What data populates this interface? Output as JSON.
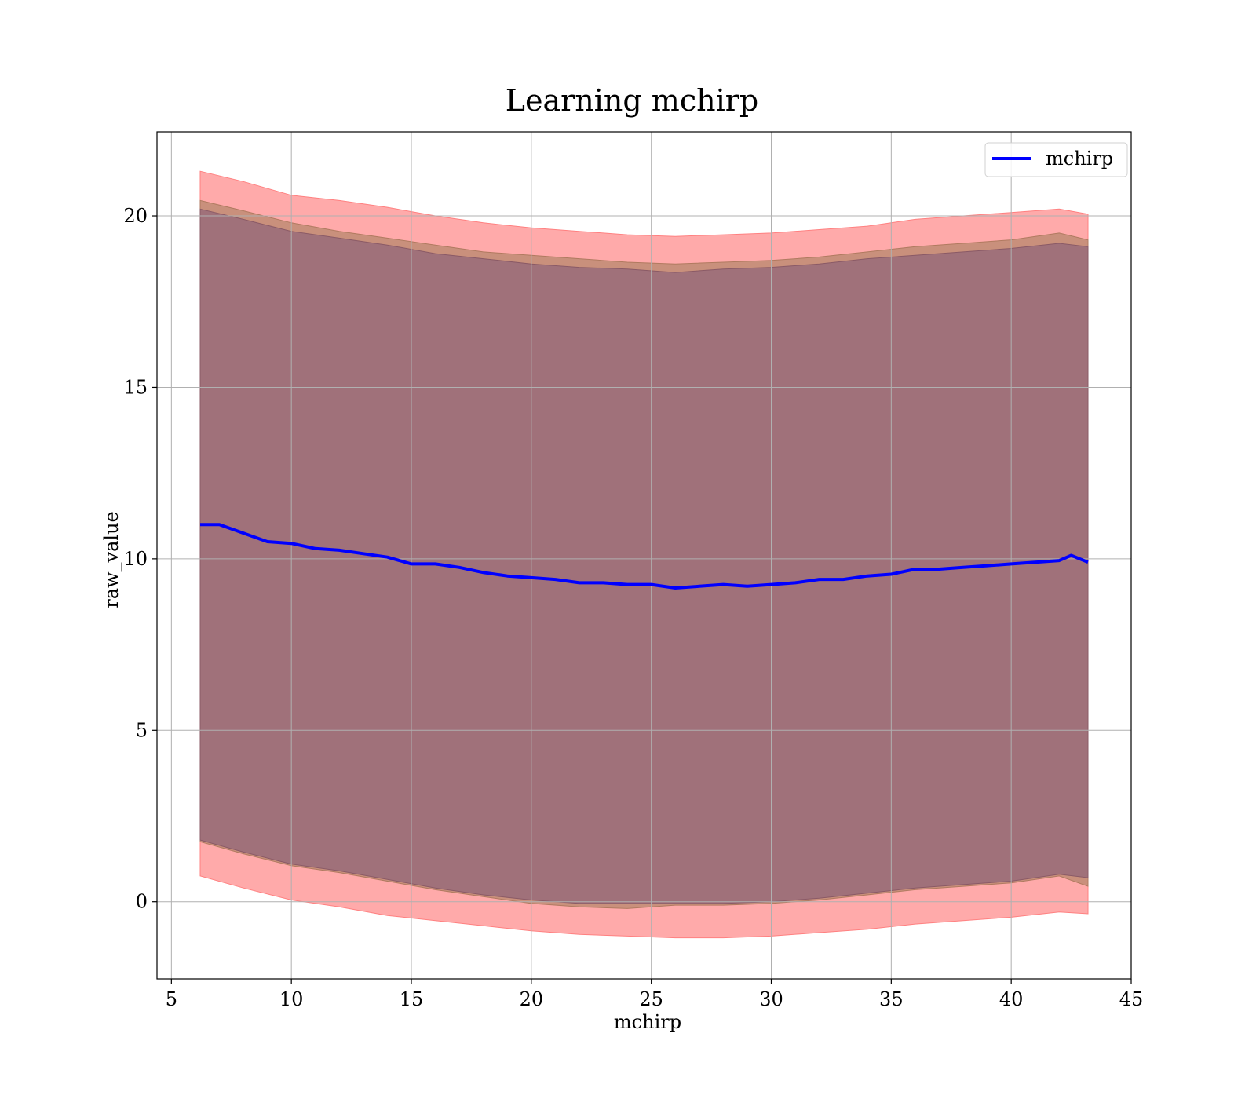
{
  "chart_data": {
    "type": "line",
    "title": "Learning mchirp",
    "xlabel": "mchirp",
    "ylabel": "raw_value",
    "xlim": [
      4.4,
      45
    ],
    "ylim": [
      -2.25,
      22.45
    ],
    "xticks": [
      5,
      10,
      15,
      20,
      25,
      30,
      35,
      40,
      45
    ],
    "yticks": [
      0,
      5,
      10,
      15,
      20
    ],
    "grid": true,
    "legend": {
      "position": "top-right",
      "entries": [
        "mchirp"
      ]
    },
    "colors": {
      "line": "#0000ff",
      "band_outer": "#ffaaaa",
      "band_middle": "#c9907c",
      "band_inner": "#a0717a"
    },
    "series": [
      {
        "name": "mchirp",
        "x": [
          6.2,
          7,
          8,
          9,
          10,
          11,
          12,
          13,
          14,
          15,
          16,
          17,
          18,
          19,
          20,
          21,
          22,
          23,
          24,
          25,
          26,
          27,
          28,
          29,
          30,
          31,
          32,
          33,
          34,
          35,
          36,
          37,
          38,
          39,
          40,
          41,
          42,
          42.5,
          43.2
        ],
        "values": [
          11.0,
          11.0,
          10.75,
          10.5,
          10.45,
          10.3,
          10.25,
          10.15,
          10.05,
          9.85,
          9.85,
          9.75,
          9.6,
          9.5,
          9.45,
          9.4,
          9.3,
          9.3,
          9.25,
          9.25,
          9.15,
          9.2,
          9.25,
          9.2,
          9.25,
          9.3,
          9.4,
          9.4,
          9.5,
          9.55,
          9.7,
          9.7,
          9.75,
          9.8,
          9.85,
          9.9,
          9.95,
          10.1,
          9.9
        ]
      }
    ],
    "bands": [
      {
        "x": [
          6.2,
          8,
          10,
          12,
          14,
          16,
          18,
          20,
          22,
          24,
          26,
          28,
          30,
          32,
          34,
          36,
          38,
          40,
          42,
          43.2
        ],
        "upper": [
          21.3,
          21.0,
          20.6,
          20.45,
          20.25,
          20.0,
          19.8,
          19.65,
          19.55,
          19.45,
          19.4,
          19.45,
          19.5,
          19.6,
          19.7,
          19.9,
          20.0,
          20.1,
          20.2,
          20.05
        ],
        "lower": [
          0.75,
          0.4,
          0.05,
          -0.15,
          -0.4,
          -0.55,
          -0.7,
          -0.85,
          -0.95,
          -1.0,
          -1.05,
          -1.05,
          -1.0,
          -0.9,
          -0.8,
          -0.65,
          -0.55,
          -0.45,
          -0.3,
          -0.35
        ]
      },
      {
        "x": [
          6.2,
          8,
          10,
          12,
          14,
          16,
          18,
          20,
          22,
          24,
          26,
          28,
          30,
          32,
          34,
          36,
          38,
          40,
          42,
          43.2
        ],
        "upper": [
          20.45,
          20.15,
          19.8,
          19.55,
          19.35,
          19.15,
          18.95,
          18.85,
          18.75,
          18.65,
          18.6,
          18.65,
          18.7,
          18.8,
          18.95,
          19.1,
          19.2,
          19.3,
          19.5,
          19.3
        ],
        "lower": [
          1.75,
          1.4,
          1.05,
          0.85,
          0.6,
          0.35,
          0.15,
          -0.05,
          -0.15,
          -0.2,
          -0.1,
          -0.1,
          -0.05,
          0.05,
          0.2,
          0.35,
          0.45,
          0.55,
          0.75,
          0.45
        ]
      },
      {
        "x": [
          6.2,
          8,
          10,
          12,
          14,
          16,
          18,
          20,
          22,
          24,
          26,
          28,
          30,
          32,
          34,
          36,
          38,
          40,
          42,
          43.2
        ],
        "upper": [
          20.2,
          19.9,
          19.55,
          19.35,
          19.15,
          18.9,
          18.75,
          18.6,
          18.5,
          18.45,
          18.35,
          18.45,
          18.5,
          18.6,
          18.75,
          18.85,
          18.95,
          19.05,
          19.2,
          19.1
        ],
        "lower": [
          1.8,
          1.45,
          1.1,
          0.9,
          0.65,
          0.4,
          0.2,
          0.05,
          -0.05,
          -0.05,
          -0.05,
          -0.05,
          0.0,
          0.1,
          0.25,
          0.4,
          0.5,
          0.6,
          0.8,
          0.7
        ]
      }
    ]
  }
}
